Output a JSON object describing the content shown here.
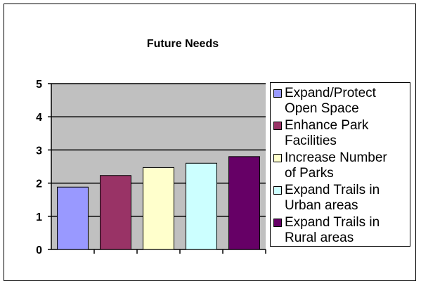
{
  "chart_data": {
    "type": "bar",
    "title": "Future Needs",
    "xlabel": "",
    "ylabel": "",
    "ylim": [
      0,
      5
    ],
    "yticks": [
      0,
      1,
      2,
      3,
      4,
      5
    ],
    "grid": true,
    "plot_background": "#C0C0C0",
    "legend_position": "right",
    "categories": [
      "Expand/Protect Open Space",
      "Enhance Park Facilities",
      "Increase Number of Parks",
      "Expand Trails in Urban areas",
      "Expand Trails in Rural areas"
    ],
    "values": [
      1.88,
      2.23,
      2.47,
      2.6,
      2.8
    ],
    "colors": [
      "#9999FF",
      "#993366",
      "#FFFFCC",
      "#CCFFFF",
      "#660066"
    ],
    "legend": [
      {
        "line1": "Expand/Protect",
        "line2": "Open Space"
      },
      {
        "line1": "Enhance Park",
        "line2": "Facilities"
      },
      {
        "line1": "Increase Number",
        "line2": "of Parks"
      },
      {
        "line1": "Expand Trails in",
        "line2": "Urban areas"
      },
      {
        "line1": "Expand Trails in",
        "line2": "Rural areas"
      }
    ]
  }
}
